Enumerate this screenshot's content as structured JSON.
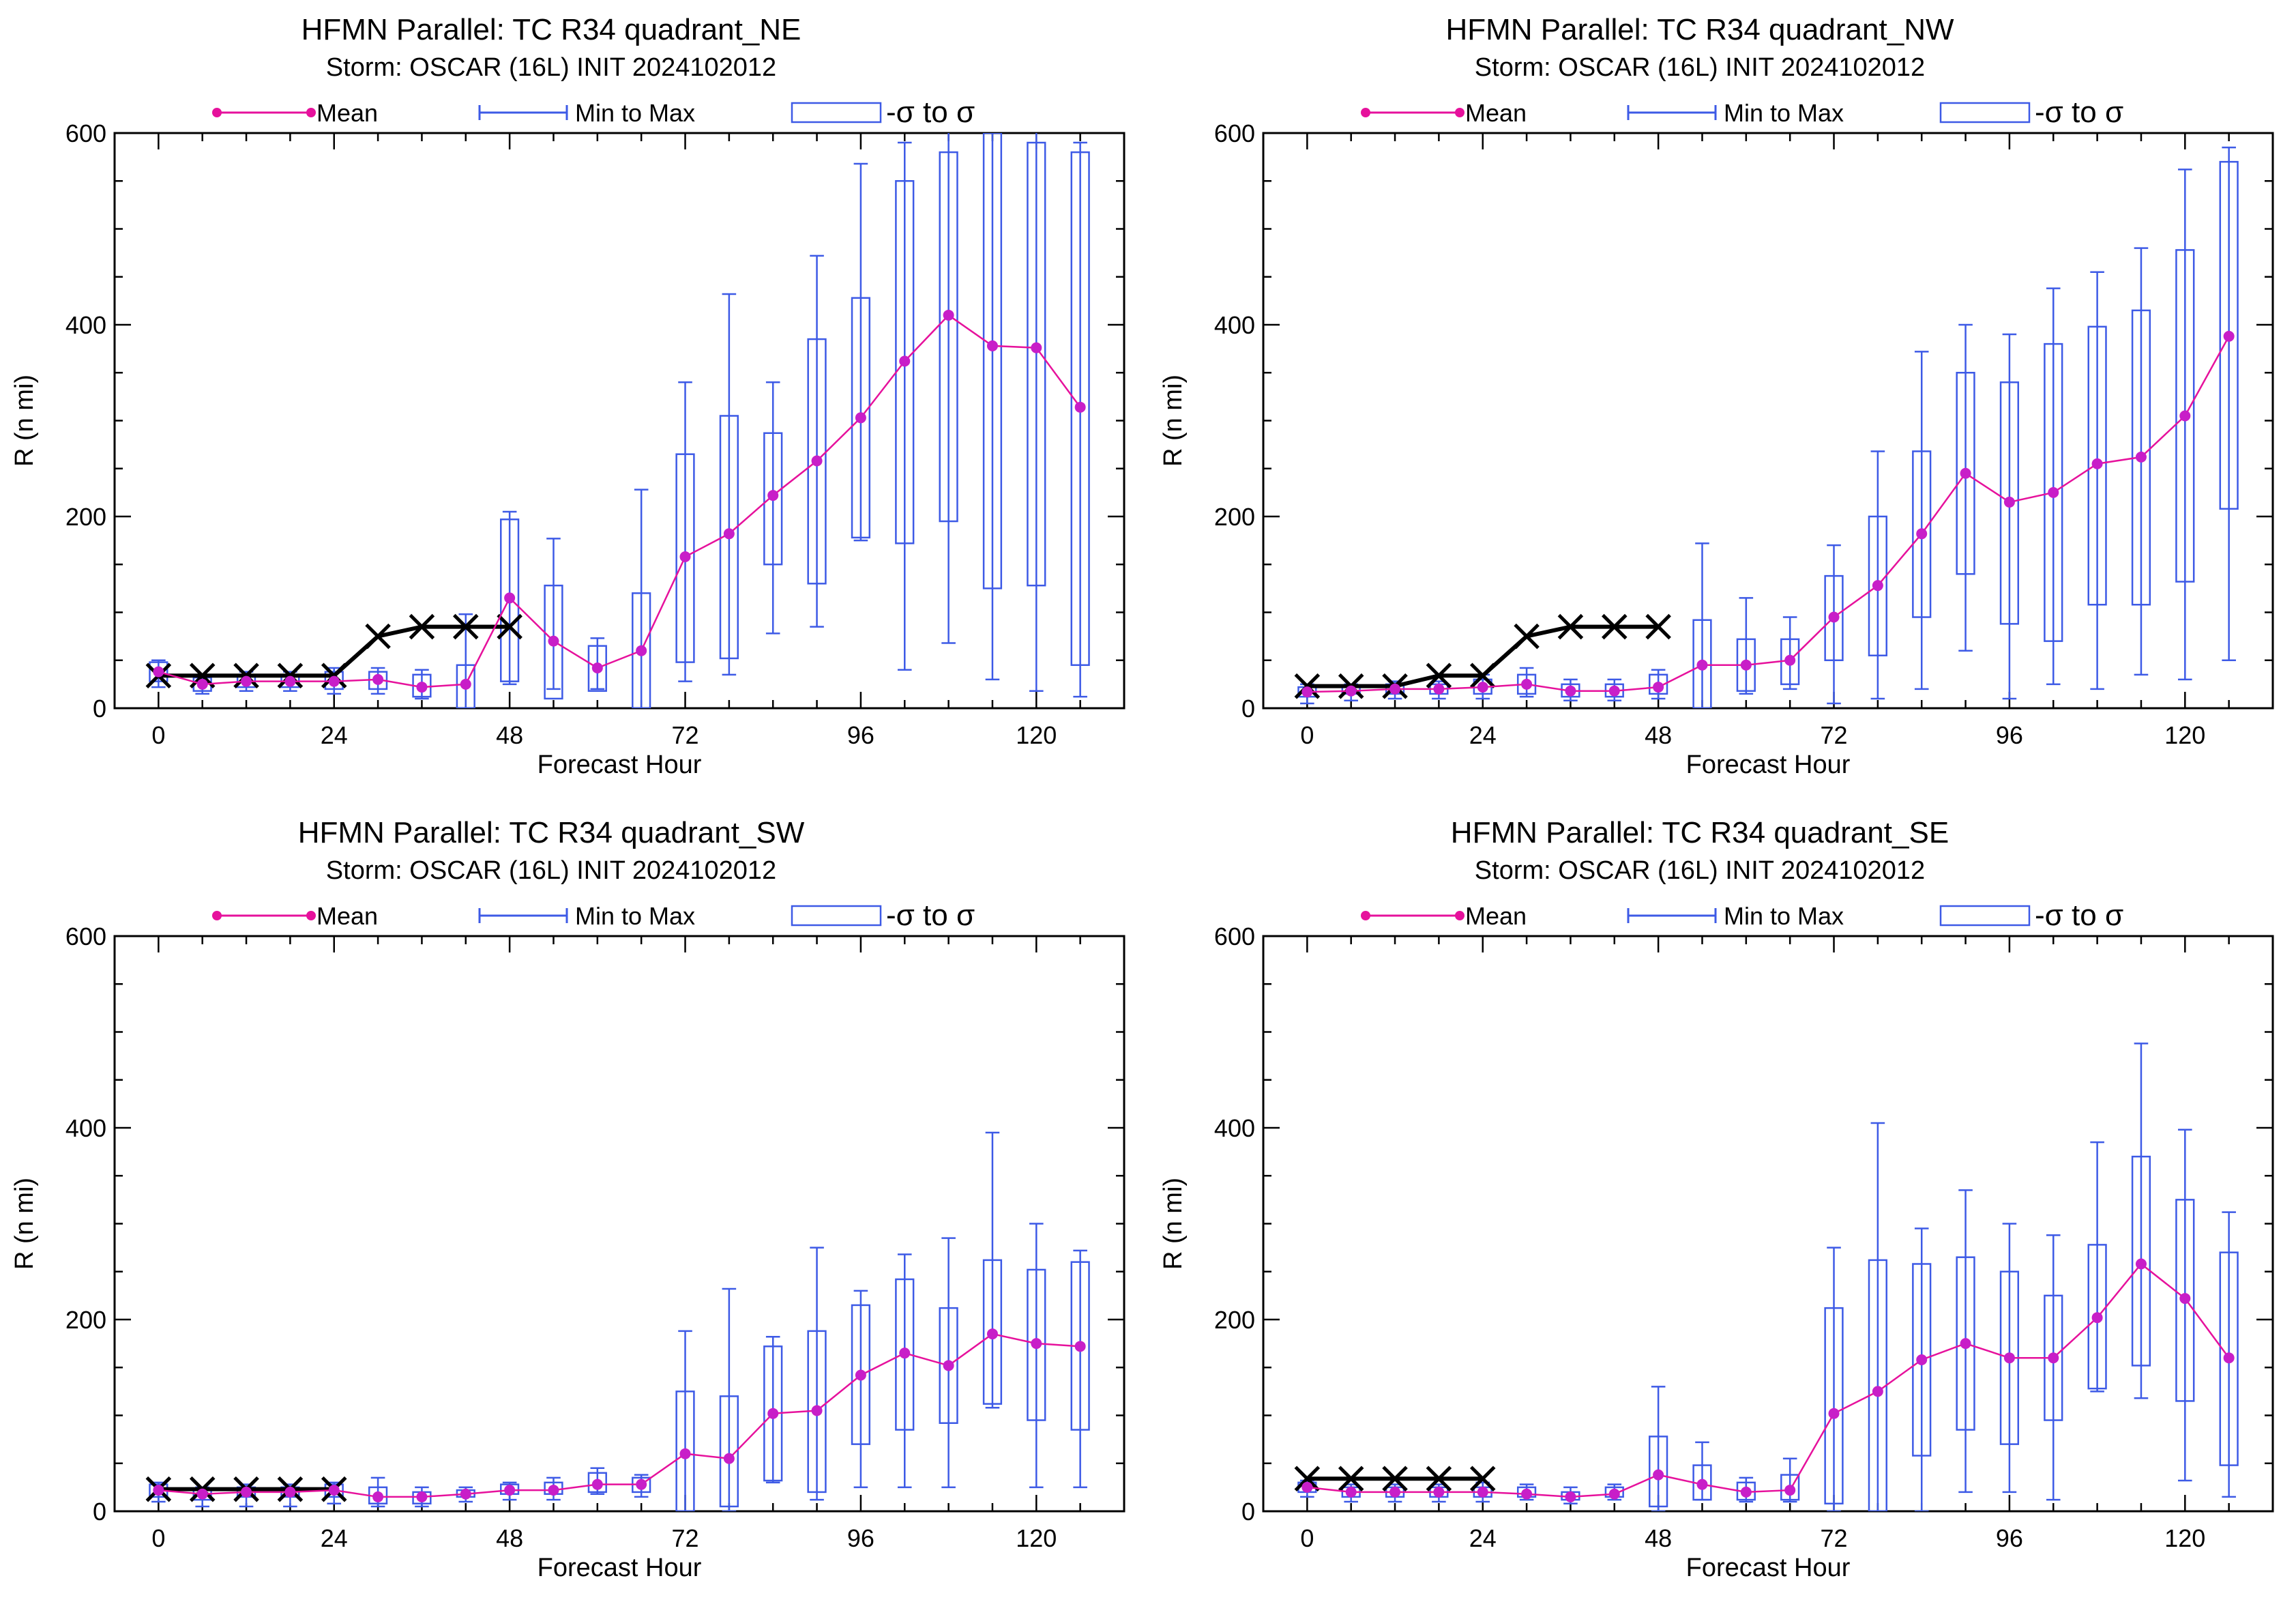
{
  "colors": {
    "mean": "#e6119c",
    "mean_marker": "#c81ec8",
    "range": "#3d5ae6",
    "obs": "#000000",
    "axis": "#000000"
  },
  "legend": {
    "mean": "Mean",
    "minmax": "Min to Max",
    "sigma": "-σ to σ"
  },
  "chart_data": [
    {
      "type": "box",
      "title": "HFMN Parallel: TC  R34 quadrant_NE",
      "subtitle": "Storm: OSCAR (16L) INIT 2024102012",
      "xlabel": "Forecast Hour",
      "ylabel": "R (n mi)",
      "xlim": [
        -6,
        132
      ],
      "ylim": [
        0,
        600
      ],
      "xticks": [
        0,
        24,
        48,
        72,
        96,
        120
      ],
      "yticks": [
        0,
        200,
        400,
        600
      ],
      "hours": [
        0,
        6,
        12,
        18,
        24,
        30,
        36,
        42,
        48,
        54,
        60,
        66,
        72,
        78,
        84,
        90,
        96,
        102,
        108,
        114,
        120,
        126
      ],
      "mean": [
        38,
        25,
        28,
        28,
        28,
        30,
        22,
        25,
        115,
        70,
        42,
        60,
        158,
        182,
        222,
        258,
        303,
        362,
        410,
        378,
        376,
        314
      ],
      "min": [
        22,
        15,
        18,
        18,
        15,
        15,
        10,
        0,
        25,
        20,
        20,
        0,
        28,
        35,
        78,
        85,
        175,
        40,
        68,
        30,
        18,
        12
      ],
      "max": [
        50,
        35,
        38,
        38,
        42,
        42,
        40,
        98,
        205,
        177,
        73,
        228,
        340,
        432,
        340,
        472,
        568,
        590,
        630,
        630,
        630,
        590
      ],
      "sigma_lo": [
        28,
        18,
        22,
        22,
        20,
        20,
        12,
        0,
        28,
        10,
        18,
        0,
        48,
        52,
        150,
        130,
        178,
        172,
        195,
        125,
        128,
        45
      ],
      "sigma_hi": [
        48,
        32,
        34,
        34,
        38,
        38,
        35,
        45,
        197,
        128,
        65,
        120,
        265,
        305,
        287,
        385,
        428,
        550,
        580,
        600,
        590,
        580
      ],
      "obs_hours": [
        0,
        6,
        12,
        18,
        24,
        30,
        36,
        42,
        48
      ],
      "obs": [
        34,
        34,
        34,
        34,
        34,
        75,
        85,
        85,
        85
      ]
    },
    {
      "type": "box",
      "title": "HFMN Parallel: TC  R34 quadrant_NW",
      "subtitle": "Storm: OSCAR (16L) INIT 2024102012",
      "xlabel": "Forecast Hour",
      "ylabel": "R (n mi)",
      "xlim": [
        -6,
        132
      ],
      "ylim": [
        0,
        600
      ],
      "xticks": [
        0,
        24,
        48,
        72,
        96,
        120
      ],
      "yticks": [
        0,
        200,
        400,
        600
      ],
      "hours": [
        0,
        6,
        12,
        18,
        24,
        30,
        36,
        42,
        48,
        54,
        60,
        66,
        72,
        78,
        84,
        90,
        96,
        102,
        108,
        114,
        120,
        126
      ],
      "mean": [
        17,
        18,
        20,
        20,
        22,
        25,
        18,
        18,
        22,
        45,
        45,
        50,
        95,
        128,
        182,
        245,
        215,
        225,
        255,
        262,
        305,
        388
      ],
      "min": [
        5,
        8,
        10,
        10,
        10,
        12,
        8,
        8,
        10,
        0,
        15,
        20,
        5,
        10,
        20,
        60,
        10,
        25,
        20,
        35,
        30,
        50
      ],
      "max": [
        25,
        25,
        28,
        28,
        35,
        42,
        30,
        30,
        40,
        172,
        115,
        95,
        170,
        268,
        372,
        400,
        390,
        438,
        455,
        480,
        562,
        585
      ],
      "sigma_lo": [
        12,
        15,
        15,
        15,
        15,
        15,
        12,
        12,
        15,
        0,
        18,
        25,
        50,
        55,
        95,
        140,
        88,
        70,
        108,
        108,
        132,
        208
      ],
      "sigma_hi": [
        22,
        22,
        25,
        25,
        30,
        35,
        25,
        25,
        35,
        92,
        72,
        72,
        138,
        200,
        268,
        350,
        340,
        380,
        398,
        415,
        478,
        570
      ],
      "obs_hours": [
        0,
        6,
        12,
        18,
        24,
        30,
        36,
        42,
        48
      ],
      "obs": [
        23,
        23,
        23,
        34,
        34,
        75,
        85,
        85,
        85
      ]
    },
    {
      "type": "box",
      "title": "HFMN Parallel: TC  R34 quadrant_SW",
      "subtitle": "Storm: OSCAR (16L) INIT 2024102012",
      "xlabel": "Forecast Hour",
      "ylabel": "R (n mi)",
      "xlim": [
        -6,
        132
      ],
      "ylim": [
        0,
        600
      ],
      "xticks": [
        0,
        24,
        48,
        72,
        96,
        120
      ],
      "yticks": [
        0,
        200,
        400,
        600
      ],
      "hours": [
        0,
        6,
        12,
        18,
        24,
        30,
        36,
        42,
        48,
        54,
        60,
        66,
        72,
        78,
        84,
        90,
        96,
        102,
        108,
        114,
        120,
        126
      ],
      "mean": [
        22,
        18,
        20,
        20,
        22,
        15,
        15,
        18,
        22,
        22,
        28,
        28,
        60,
        55,
        102,
        105,
        142,
        165,
        152,
        185,
        175,
        172
      ],
      "min": [
        10,
        5,
        5,
        5,
        8,
        5,
        5,
        10,
        12,
        12,
        18,
        15,
        0,
        0,
        30,
        12,
        25,
        25,
        25,
        108,
        25,
        25
      ],
      "max": [
        30,
        25,
        28,
        28,
        30,
        35,
        25,
        25,
        30,
        35,
        45,
        38,
        188,
        232,
        182,
        275,
        230,
        268,
        285,
        395,
        300,
        272
      ],
      "sigma_lo": [
        15,
        12,
        15,
        15,
        15,
        8,
        8,
        15,
        18,
        18,
        20,
        20,
        0,
        5,
        32,
        20,
        70,
        85,
        92,
        112,
        95,
        85
      ],
      "sigma_hi": [
        28,
        22,
        25,
        25,
        28,
        25,
        20,
        22,
        28,
        30,
        40,
        35,
        125,
        120,
        172,
        188,
        215,
        242,
        212,
        262,
        252,
        260
      ],
      "obs_hours": [
        0,
        6,
        12,
        18,
        24
      ],
      "obs": [
        23,
        23,
        23,
        23,
        23
      ]
    },
    {
      "type": "box",
      "title": "HFMN Parallel: TC  R34 quadrant_SE",
      "subtitle": "Storm: OSCAR (16L) INIT 2024102012",
      "xlabel": "Forecast Hour",
      "ylabel": "R (n mi)",
      "xlim": [
        -6,
        132
      ],
      "ylim": [
        0,
        600
      ],
      "xticks": [
        0,
        24,
        48,
        72,
        96,
        120
      ],
      "yticks": [
        0,
        200,
        400,
        600
      ],
      "hours": [
        0,
        6,
        12,
        18,
        24,
        30,
        36,
        42,
        48,
        54,
        60,
        66,
        72,
        78,
        84,
        90,
        96,
        102,
        108,
        114,
        120,
        126
      ],
      "mean": [
        25,
        20,
        20,
        20,
        20,
        18,
        15,
        18,
        38,
        28,
        20,
        22,
        102,
        125,
        158,
        175,
        160,
        160,
        202,
        258,
        222,
        160
      ],
      "min": [
        15,
        10,
        10,
        10,
        10,
        12,
        8,
        12,
        0,
        12,
        10,
        10,
        0,
        0,
        0,
        20,
        20,
        12,
        125,
        118,
        32,
        15
      ],
      "max": [
        32,
        28,
        28,
        28,
        30,
        28,
        25,
        28,
        130,
        72,
        35,
        55,
        275,
        405,
        295,
        335,
        300,
        288,
        385,
        488,
        398,
        312
      ],
      "sigma_lo": [
        20,
        15,
        15,
        15,
        15,
        15,
        12,
        15,
        5,
        12,
        12,
        12,
        8,
        0,
        58,
        85,
        70,
        95,
        128,
        152,
        115,
        48
      ],
      "sigma_hi": [
        30,
        25,
        25,
        25,
        25,
        25,
        20,
        25,
        78,
        48,
        30,
        38,
        212,
        262,
        258,
        265,
        250,
        225,
        278,
        370,
        325,
        270
      ],
      "obs_hours": [
        0,
        6,
        12,
        18,
        24
      ],
      "obs": [
        34,
        34,
        34,
        34,
        34
      ]
    }
  ]
}
